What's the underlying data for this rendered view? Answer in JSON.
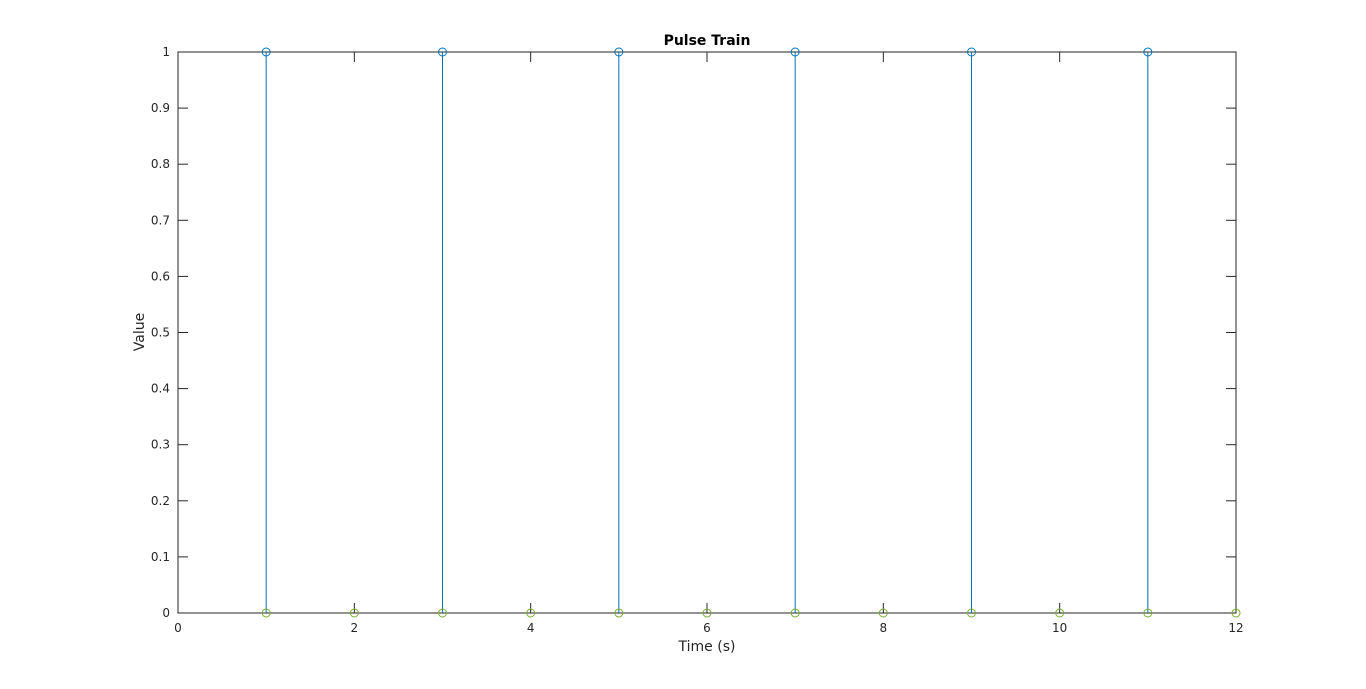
{
  "chart_data": {
    "type": "stem",
    "title": "Pulse Train",
    "xlabel": "Time (s)",
    "ylabel": "Value",
    "xlim": [
      0,
      12
    ],
    "ylim": [
      0,
      1
    ],
    "xticks": [
      0,
      2,
      4,
      6,
      8,
      10,
      12
    ],
    "yticks": [
      0,
      0.1,
      0.2,
      0.3,
      0.4,
      0.5,
      0.6,
      0.7,
      0.8,
      0.9,
      1
    ],
    "grid": false,
    "box": true,
    "series": [
      {
        "type": "stem",
        "color": "#0072BD",
        "x": [
          1,
          3,
          5,
          7,
          9,
          11
        ],
        "y": [
          1,
          1,
          1,
          1,
          1,
          1
        ]
      },
      {
        "type": "markers",
        "color": "#77AC30",
        "x": [
          1,
          2,
          3,
          4,
          5,
          6,
          7,
          8,
          9,
          10,
          11,
          12
        ],
        "y": [
          0,
          0,
          0,
          0,
          0,
          0,
          0,
          0,
          0,
          0,
          0,
          0
        ]
      }
    ]
  }
}
